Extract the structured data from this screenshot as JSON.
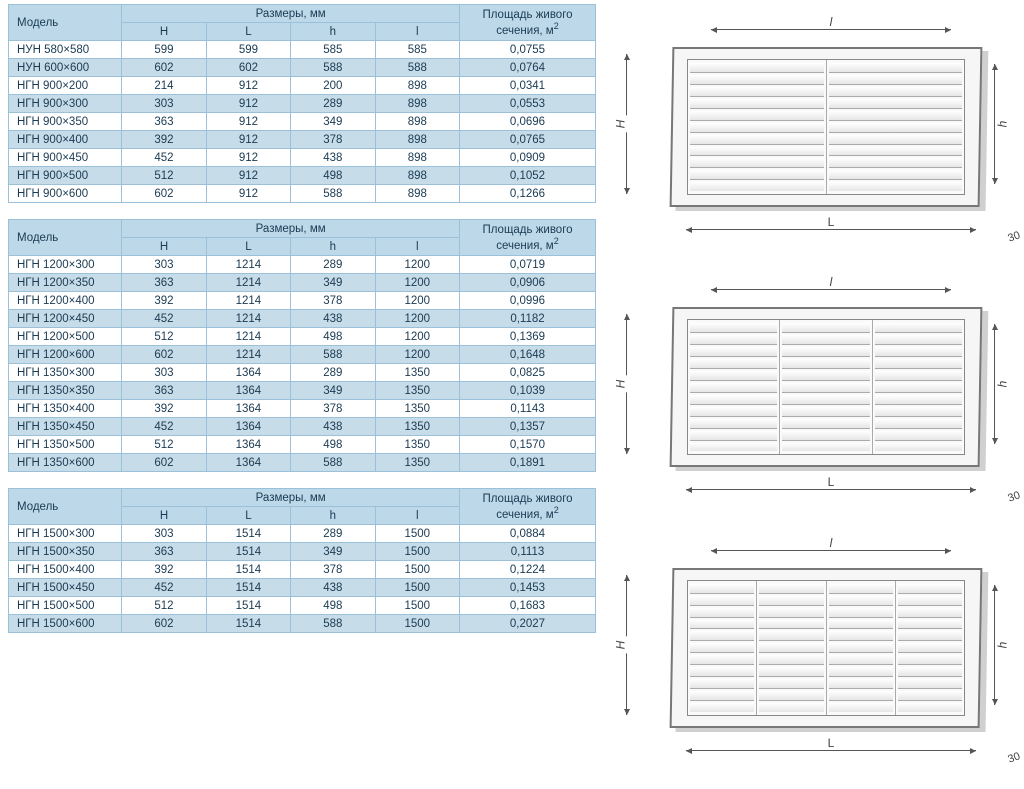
{
  "headers": {
    "model": "Модель",
    "dims": "Размеры, мм",
    "H": "H",
    "L": "L",
    "h": "h",
    "l": "l",
    "area_l1": "Площадь живого",
    "area_l2": "сечения, м",
    "area_sup": "2"
  },
  "diagram_labels": {
    "H": "H",
    "L": "L",
    "h": "h",
    "l": "l",
    "d30": "30"
  },
  "colors": {
    "header_bg": "#bdd9e9",
    "row_alt_bg": "#c7dce9",
    "border": "#9ac1d9",
    "text": "#1a3a52"
  },
  "diagram_panels": [
    2,
    3,
    4
  ],
  "diagram_slats": 11,
  "tables": [
    {
      "rows": [
        {
          "model": "НУН 580×580",
          "H": "599",
          "L": "599",
          "h": "585",
          "l": "585",
          "area": "0,0755"
        },
        {
          "model": "НУН 600×600",
          "H": "602",
          "L": "602",
          "h": "588",
          "l": "588",
          "area": "0,0764"
        },
        {
          "model": "НГН 900×200",
          "H": "214",
          "L": "912",
          "h": "200",
          "l": "898",
          "area": "0,0341"
        },
        {
          "model": "НГН 900×300",
          "H": "303",
          "L": "912",
          "h": "289",
          "l": "898",
          "area": "0,0553"
        },
        {
          "model": "НГН 900×350",
          "H": "363",
          "L": "912",
          "h": "349",
          "l": "898",
          "area": "0,0696"
        },
        {
          "model": "НГН 900×400",
          "H": "392",
          "L": "912",
          "h": "378",
          "l": "898",
          "area": "0,0765"
        },
        {
          "model": "НГН 900×450",
          "H": "452",
          "L": "912",
          "h": "438",
          "l": "898",
          "area": "0,0909"
        },
        {
          "model": "НГН 900×500",
          "H": "512",
          "L": "912",
          "h": "498",
          "l": "898",
          "area": "0,1052"
        },
        {
          "model": "НГН 900×600",
          "H": "602",
          "L": "912",
          "h": "588",
          "l": "898",
          "area": "0,1266"
        }
      ]
    },
    {
      "rows": [
        {
          "model": "НГН 1200×300",
          "H": "303",
          "L": "1214",
          "h": "289",
          "l": "1200",
          "area": "0,0719"
        },
        {
          "model": "НГН 1200×350",
          "H": "363",
          "L": "1214",
          "h": "349",
          "l": "1200",
          "area": "0,0906"
        },
        {
          "model": "НГН 1200×400",
          "H": "392",
          "L": "1214",
          "h": "378",
          "l": "1200",
          "area": "0,0996"
        },
        {
          "model": "НГН 1200×450",
          "H": "452",
          "L": "1214",
          "h": "438",
          "l": "1200",
          "area": "0,1182"
        },
        {
          "model": "НГН 1200×500",
          "H": "512",
          "L": "1214",
          "h": "498",
          "l": "1200",
          "area": "0,1369"
        },
        {
          "model": "НГН 1200×600",
          "H": "602",
          "L": "1214",
          "h": "588",
          "l": "1200",
          "area": "0,1648"
        },
        {
          "model": "НГН 1350×300",
          "H": "303",
          "L": "1364",
          "h": "289",
          "l": "1350",
          "area": "0,0825"
        },
        {
          "model": "НГН 1350×350",
          "H": "363",
          "L": "1364",
          "h": "349",
          "l": "1350",
          "area": "0,1039"
        },
        {
          "model": "НГН 1350×400",
          "H": "392",
          "L": "1364",
          "h": "378",
          "l": "1350",
          "area": "0,1143"
        },
        {
          "model": "НГН 1350×450",
          "H": "452",
          "L": "1364",
          "h": "438",
          "l": "1350",
          "area": "0,1357"
        },
        {
          "model": "НГН 1350×500",
          "H": "512",
          "L": "1364",
          "h": "498",
          "l": "1350",
          "area": "0,1570"
        },
        {
          "model": "НГН 1350×600",
          "H": "602",
          "L": "1364",
          "h": "588",
          "l": "1350",
          "area": "0,1891"
        }
      ]
    },
    {
      "rows": [
        {
          "model": "НГН 1500×300",
          "H": "303",
          "L": "1514",
          "h": "289",
          "l": "1500",
          "area": "0,0884"
        },
        {
          "model": "НГН 1500×350",
          "H": "363",
          "L": "1514",
          "h": "349",
          "l": "1500",
          "area": "0,1113"
        },
        {
          "model": "НГН 1500×400",
          "H": "392",
          "L": "1514",
          "h": "378",
          "l": "1500",
          "area": "0,1224"
        },
        {
          "model": "НГН 1500×450",
          "H": "452",
          "L": "1514",
          "h": "438",
          "l": "1500",
          "area": "0,1453"
        },
        {
          "model": "НГН 1500×500",
          "H": "512",
          "L": "1514",
          "h": "498",
          "l": "1500",
          "area": "0,1683"
        },
        {
          "model": "НГН 1500×600",
          "H": "602",
          "L": "1514",
          "h": "588",
          "l": "1500",
          "area": "0,2027"
        }
      ]
    }
  ]
}
